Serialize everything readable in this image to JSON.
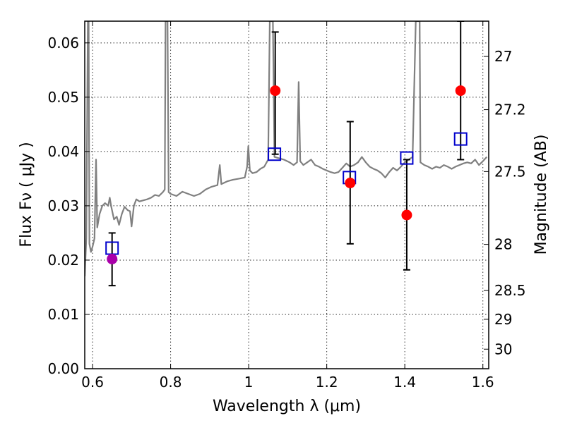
{
  "chart_data": {
    "type": "scatter",
    "xlabel": "Wavelength  λ (μm)",
    "ylabel": "Flux  Fν  ( μJy )",
    "y2label": "Magnitude (AB)",
    "xlim": [
      0.58,
      1.615
    ],
    "ylim": [
      0.0,
      0.064
    ],
    "grid": true,
    "x_ticks": [
      {
        "v": 0.6,
        "label": "0.6"
      },
      {
        "v": 0.8,
        "label": "0.8"
      },
      {
        "v": 1.0,
        "label": "1"
      },
      {
        "v": 1.2,
        "label": "1.2"
      },
      {
        "v": 1.4,
        "label": "1.4"
      },
      {
        "v": 1.6,
        "label": "1.6"
      }
    ],
    "y_ticks": [
      {
        "v": 0.0,
        "label": "0.00"
      },
      {
        "v": 0.01,
        "label": "0.01"
      },
      {
        "v": 0.02,
        "label": "0.02"
      },
      {
        "v": 0.03,
        "label": "0.03"
      },
      {
        "v": 0.04,
        "label": "0.04"
      },
      {
        "v": 0.05,
        "label": "0.05"
      },
      {
        "v": 0.06,
        "label": "0.06"
      }
    ],
    "y2_ticks": [
      {
        "flux": 0.0575,
        "label": "27"
      },
      {
        "flux": 0.0477,
        "label": "27.2"
      },
      {
        "flux": 0.0363,
        "label": "27.5"
      },
      {
        "flux": 0.0229,
        "label": "28"
      },
      {
        "flux": 0.0144,
        "label": "28.5"
      },
      {
        "flux": 0.0091,
        "label": "29"
      },
      {
        "flux": 0.0036,
        "label": "30"
      }
    ],
    "colors": {
      "spectrum": "#808080",
      "observed": "#ff0000",
      "observed_first": "#aa00aa",
      "model": "#0000cc",
      "errorbar": "#000000"
    },
    "spectrum": [
      [
        0.58,
        0.017
      ],
      [
        0.584,
        0.024
      ],
      [
        0.588,
        0.064
      ],
      [
        0.59,
        0.064
      ],
      [
        0.592,
        0.023
      ],
      [
        0.596,
        0.0215
      ],
      [
        0.6,
        0.0225
      ],
      [
        0.605,
        0.024
      ],
      [
        0.609,
        0.0385
      ],
      [
        0.612,
        0.026
      ],
      [
        0.618,
        0.0285
      ],
      [
        0.625,
        0.03
      ],
      [
        0.632,
        0.0305
      ],
      [
        0.64,
        0.03
      ],
      [
        0.644,
        0.0315
      ],
      [
        0.648,
        0.0298
      ],
      [
        0.655,
        0.0275
      ],
      [
        0.662,
        0.028
      ],
      [
        0.668,
        0.0265
      ],
      [
        0.675,
        0.0285
      ],
      [
        0.682,
        0.0298
      ],
      [
        0.69,
        0.0292
      ],
      [
        0.696,
        0.029
      ],
      [
        0.7,
        0.0262
      ],
      [
        0.706,
        0.03
      ],
      [
        0.712,
        0.0312
      ],
      [
        0.72,
        0.0308
      ],
      [
        0.73,
        0.031
      ],
      [
        0.74,
        0.0312
      ],
      [
        0.75,
        0.0315
      ],
      [
        0.76,
        0.032
      ],
      [
        0.77,
        0.0318
      ],
      [
        0.78,
        0.0325
      ],
      [
        0.785,
        0.033
      ],
      [
        0.787,
        0.064
      ],
      [
        0.792,
        0.064
      ],
      [
        0.795,
        0.0325
      ],
      [
        0.8,
        0.0322
      ],
      [
        0.815,
        0.0318
      ],
      [
        0.83,
        0.0326
      ],
      [
        0.845,
        0.0322
      ],
      [
        0.86,
        0.0318
      ],
      [
        0.875,
        0.0322
      ],
      [
        0.89,
        0.033
      ],
      [
        0.905,
        0.0335
      ],
      [
        0.92,
        0.0338
      ],
      [
        0.926,
        0.0375
      ],
      [
        0.93,
        0.034
      ],
      [
        0.945,
        0.0345
      ],
      [
        0.96,
        0.0348
      ],
      [
        0.975,
        0.035
      ],
      [
        0.99,
        0.0352
      ],
      [
        0.996,
        0.0372
      ],
      [
        0.999,
        0.041
      ],
      [
        1.003,
        0.0365
      ],
      [
        1.01,
        0.036
      ],
      [
        1.02,
        0.0362
      ],
      [
        1.03,
        0.0368
      ],
      [
        1.04,
        0.0372
      ],
      [
        1.05,
        0.0385
      ],
      [
        1.054,
        0.064
      ],
      [
        1.062,
        0.064
      ],
      [
        1.066,
        0.039
      ],
      [
        1.075,
        0.0388
      ],
      [
        1.09,
        0.0385
      ],
      [
        1.105,
        0.038
      ],
      [
        1.115,
        0.0375
      ],
      [
        1.124,
        0.038
      ],
      [
        1.128,
        0.0528
      ],
      [
        1.132,
        0.0382
      ],
      [
        1.14,
        0.0375
      ],
      [
        1.15,
        0.038
      ],
      [
        1.16,
        0.0385
      ],
      [
        1.17,
        0.0375
      ],
      [
        1.18,
        0.0372
      ],
      [
        1.19,
        0.0368
      ],
      [
        1.2,
        0.0365
      ],
      [
        1.21,
        0.0362
      ],
      [
        1.22,
        0.036
      ],
      [
        1.23,
        0.0362
      ],
      [
        1.24,
        0.037
      ],
      [
        1.25,
        0.0378
      ],
      [
        1.26,
        0.0372
      ],
      [
        1.27,
        0.0375
      ],
      [
        1.28,
        0.038
      ],
      [
        1.29,
        0.039
      ],
      [
        1.3,
        0.038
      ],
      [
        1.31,
        0.0372
      ],
      [
        1.32,
        0.0368
      ],
      [
        1.33,
        0.0365
      ],
      [
        1.34,
        0.036
      ],
      [
        1.35,
        0.0352
      ],
      [
        1.36,
        0.0362
      ],
      [
        1.37,
        0.037
      ],
      [
        1.38,
        0.0365
      ],
      [
        1.39,
        0.0372
      ],
      [
        1.4,
        0.038
      ],
      [
        1.41,
        0.0385
      ],
      [
        1.42,
        0.039
      ],
      [
        1.428,
        0.064
      ],
      [
        1.438,
        0.064
      ],
      [
        1.44,
        0.038
      ],
      [
        1.45,
        0.0375
      ],
      [
        1.46,
        0.0372
      ],
      [
        1.47,
        0.0368
      ],
      [
        1.48,
        0.0372
      ],
      [
        1.49,
        0.037
      ],
      [
        1.5,
        0.0375
      ],
      [
        1.51,
        0.0372
      ],
      [
        1.52,
        0.0368
      ],
      [
        1.53,
        0.0372
      ],
      [
        1.54,
        0.0375
      ],
      [
        1.55,
        0.0378
      ],
      [
        1.56,
        0.038
      ],
      [
        1.57,
        0.0378
      ],
      [
        1.58,
        0.0385
      ],
      [
        1.59,
        0.0375
      ],
      [
        1.6,
        0.0382
      ],
      [
        1.61,
        0.039
      ]
    ],
    "observed": [
      {
        "x": 0.65,
        "y": 0.0202,
        "lo": 0.0153,
        "hi": 0.025
      },
      {
        "x": 1.068,
        "y": 0.0512,
        "lo": 0.0395,
        "hi": 0.062
      },
      {
        "x": 1.26,
        "y": 0.0342,
        "lo": 0.023,
        "hi": 0.0455
      },
      {
        "x": 1.405,
        "y": 0.0283,
        "lo": 0.0182,
        "hi": 0.0385
      },
      {
        "x": 1.543,
        "y": 0.0512,
        "lo": 0.0385,
        "hi": 0.064
      }
    ],
    "model": [
      {
        "x": 0.65,
        "y": 0.0222
      },
      {
        "x": 1.066,
        "y": 0.0395
      },
      {
        "x": 1.258,
        "y": 0.0352
      },
      {
        "x": 1.405,
        "y": 0.0388
      },
      {
        "x": 1.543,
        "y": 0.0423
      }
    ]
  }
}
